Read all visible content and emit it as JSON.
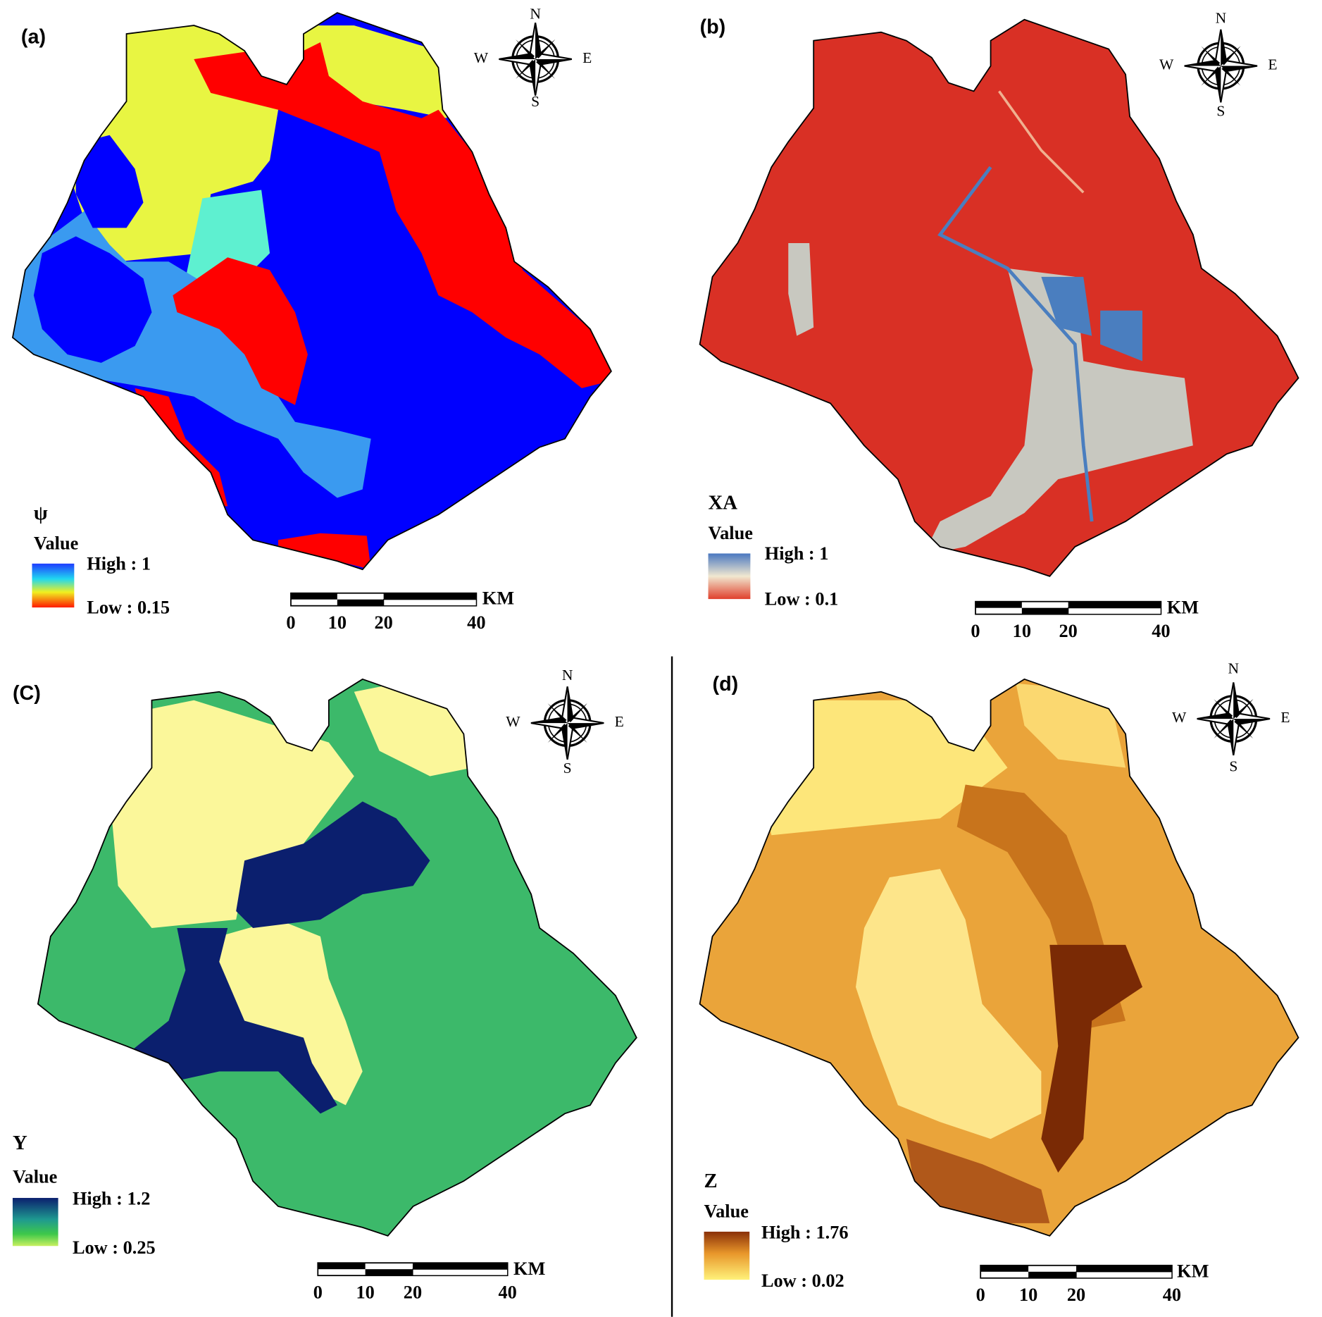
{
  "panels": [
    {
      "label": "(a)",
      "variable": "ψ",
      "legend_title": "Value",
      "high": "High : 1",
      "low": "Low : 0.15",
      "scale_labels": [
        "0",
        "10",
        "20",
        "40"
      ],
      "scale_unit": "KM",
      "compass": {
        "n": "N",
        "e": "E",
        "s": "S",
        "w": "W"
      }
    },
    {
      "label": "(b)",
      "variable": "XA",
      "legend_title": "Value",
      "high": "High : 1",
      "low": "Low : 0.1",
      "scale_labels": [
        "0",
        "10",
        "20",
        "40"
      ],
      "scale_unit": "KM",
      "compass": {
        "n": "N",
        "e": "E",
        "s": "S",
        "w": "W"
      }
    },
    {
      "label": "(C)",
      "variable": "Y",
      "legend_title": "Value",
      "high": "High : 1.2",
      "low": "Low : 0.25",
      "scale_labels": [
        "0",
        "10",
        "20",
        "40"
      ],
      "scale_unit": "KM",
      "compass": {
        "n": "N",
        "e": "E",
        "s": "S",
        "w": "W"
      }
    },
    {
      "label": "(d)",
      "variable": "Z",
      "legend_title": "Value",
      "high": "High : 1.76",
      "low": "Low : 0.02",
      "scale_labels": [
        "0",
        "10",
        "20",
        "40"
      ],
      "scale_unit": "KM",
      "compass": {
        "n": "N",
        "e": "E",
        "s": "S",
        "w": "W"
      }
    }
  ]
}
